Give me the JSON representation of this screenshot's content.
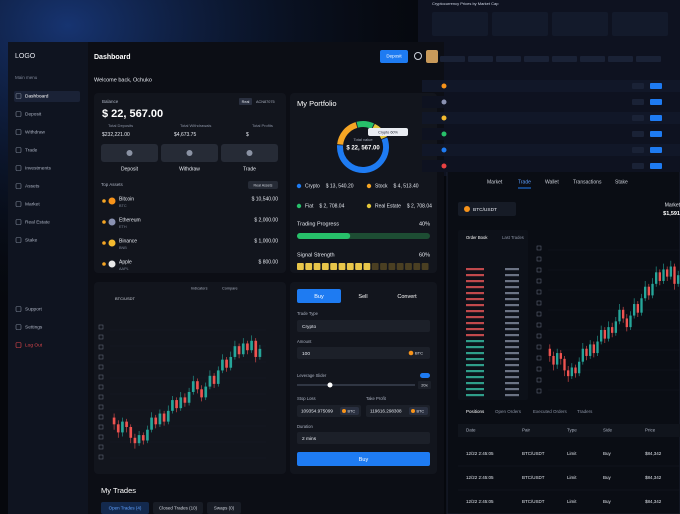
{
  "sidebar": {
    "logo": "LOGO",
    "section": "Main menu",
    "menu": [
      "Dashboard",
      "Deposit",
      "Withdraw",
      "Trade",
      "Investments",
      "Assets",
      "Market",
      "Real Estate",
      "Stake"
    ],
    "bottom": [
      "Support",
      "Settings",
      "Log Out"
    ]
  },
  "header": {
    "title": "Dashboard",
    "deposit_button": "Deposit",
    "welcome": "Welcome back, Ochuko"
  },
  "balance": {
    "label": "Balance",
    "amount": "$ 22, 567.00",
    "badge": "Real",
    "account": "ACN87075",
    "stats": [
      {
        "label": "Total Deposits",
        "value": "$232,221.00"
      },
      {
        "label": "Total Withdrawals",
        "value": "$4,673.75"
      },
      {
        "label": "Total Profits",
        "value": "$"
      }
    ],
    "actions": [
      "Deposit",
      "Withdraw",
      "Trade"
    ]
  },
  "top_assets": {
    "title": "Top Assets",
    "filter": "Real Assets",
    "items": [
      {
        "name": "Bitcoin",
        "ticker": "BTC",
        "value": "$ 10,540.00",
        "color": "#f7931a"
      },
      {
        "name": "Ethereum",
        "ticker": "ETH",
        "value": "$ 2,000.00",
        "color": "#8a92b2"
      },
      {
        "name": "Binance",
        "ticker": "BNB",
        "value": "$ 1,000.00",
        "color": "#f3ba2f"
      },
      {
        "name": "Apple",
        "ticker": "AAPL",
        "value": "$ 800.00",
        "color": "#e8e8e8"
      }
    ]
  },
  "portfolio": {
    "title": "My Portfolio",
    "center_label": "Total value",
    "center_value": "$ 22, 567.00",
    "tooltip": "Crypto 60%",
    "segments": [
      {
        "name": "Crypto",
        "value": 13540.2,
        "value_label": "$ 13, 540.20",
        "color": "#1e7bf2"
      },
      {
        "name": "Stock",
        "value": 4513.4,
        "value_label": "$ 4, 513.40",
        "color": "#f5a524"
      },
      {
        "name": "Fiat",
        "value": 2708.04,
        "value_label": "$ 2, 708.04",
        "color": "#27c06a"
      },
      {
        "name": "Real Estate",
        "value": 2708.04,
        "value_label": "$ 2, 708.04",
        "color": "#e3c63a"
      }
    ]
  },
  "progress": [
    {
      "label": "Trading Progress",
      "value": 40,
      "value_label": "40%"
    },
    {
      "label": "Signal Strength",
      "value": 60,
      "value_label": "60%"
    }
  ],
  "chart": {
    "pair": "BTC/USDT",
    "indicators": "Indicators",
    "compare": "Compare",
    "ylim": [
      85,
      180
    ],
    "candles": [
      [
        115,
        118,
        106,
        110
      ],
      [
        110,
        113,
        100,
        104
      ],
      [
        104,
        115,
        101,
        112
      ],
      [
        112,
        114,
        104,
        108
      ],
      [
        108,
        110,
        96,
        100
      ],
      [
        100,
        103,
        92,
        96
      ],
      [
        96,
        105,
        94,
        102
      ],
      [
        102,
        104,
        95,
        98
      ],
      [
        98,
        109,
        96,
        106
      ],
      [
        106,
        119,
        104,
        115
      ],
      [
        115,
        117,
        107,
        110
      ],
      [
        110,
        121,
        108,
        118
      ],
      [
        118,
        120,
        109,
        112
      ],
      [
        112,
        124,
        110,
        120
      ],
      [
        120,
        131,
        118,
        128
      ],
      [
        128,
        130,
        119,
        122
      ],
      [
        122,
        134,
        120,
        130
      ],
      [
        130,
        133,
        123,
        126
      ],
      [
        126,
        137,
        124,
        134
      ],
      [
        134,
        146,
        132,
        142
      ],
      [
        142,
        144,
        133,
        136
      ],
      [
        136,
        139,
        127,
        130
      ],
      [
        130,
        141,
        128,
        138
      ],
      [
        138,
        150,
        136,
        146
      ],
      [
        146,
        148,
        137,
        140
      ],
      [
        140,
        153,
        138,
        150
      ],
      [
        150,
        162,
        148,
        158
      ],
      [
        158,
        160,
        149,
        152
      ],
      [
        152,
        164,
        150,
        160
      ],
      [
        160,
        172,
        158,
        168
      ],
      [
        168,
        170,
        159,
        162
      ],
      [
        162,
        174,
        160,
        170
      ],
      [
        170,
        172,
        162,
        165
      ],
      [
        165,
        176,
        163,
        172
      ],
      [
        172,
        174,
        156,
        160
      ],
      [
        160,
        169,
        158,
        166
      ]
    ]
  },
  "trade_form": {
    "tabs": [
      "Buy",
      "Sell",
      "Convert"
    ],
    "trade_type_label": "Trade Type",
    "trade_type": "Crypto",
    "amount_label": "Amount",
    "amount": "100",
    "currency": "BTC",
    "leverage_label": "Leverage Slider",
    "leverage": "20x",
    "stop_loss_label": "Stop Loss",
    "stop_loss": "109354.975099",
    "take_profit_label": "Take Profit",
    "take_profit": "119616.298308",
    "duration_label": "Duration",
    "duration": "2 mins",
    "submit": "Buy"
  },
  "my_trades": {
    "title": "My Trades",
    "tabs": [
      "Open Trades (4)",
      "Closed Trades (10)",
      "Swaps (0)"
    ]
  },
  "market_panel": {
    "title": "Cryptocurrency Prices by Market Cap"
  },
  "trade_panel": {
    "nav": [
      "Market",
      "Trade",
      "Wallet",
      "Transactions",
      "Stake"
    ],
    "pair": "BTC/USDT",
    "market_label": "Market",
    "price": "$1,591",
    "book_tabs": [
      "Order Book",
      "Last Trades"
    ],
    "positions_tabs": [
      "Positions",
      "Open Orders",
      "Executed Orders",
      "Traders"
    ],
    "columns": [
      "Date",
      "Pair",
      "Type",
      "Side",
      "Price"
    ],
    "rows": [
      [
        "12/22 2:45:05",
        "BTC/USDT",
        "Limit",
        "Buy",
        "$84,342"
      ],
      [
        "12/22 2:45:05",
        "BTC/USDT",
        "Limit",
        "Buy",
        "$84,342"
      ],
      [
        "12/22 2:45:05",
        "BTC/USDT",
        "Limit",
        "Buy",
        "$84,342"
      ]
    ]
  }
}
